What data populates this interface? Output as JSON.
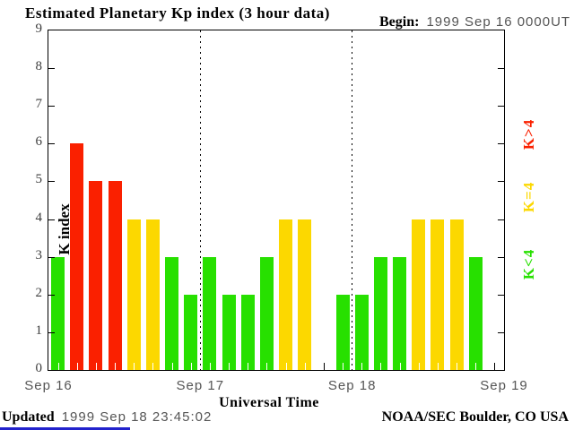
{
  "begin": {
    "label": "Begin:",
    "value": "1999 Sep 16 0000UT"
  },
  "chart_data": {
    "type": "bar",
    "title": "Estimated Planetary Kp index (3 hour data)",
    "xlabel": "Universal Time",
    "ylabel": "K index",
    "ylim": [
      0,
      9
    ],
    "y_ticks": [
      0,
      1,
      2,
      3,
      4,
      5,
      6,
      7,
      8,
      9
    ],
    "x_day_labels": [
      "Sep 16",
      "Sep 17",
      "Sep 18",
      "Sep 19"
    ],
    "bars_per_day": 8,
    "hours_per_bar": 3,
    "values": [
      3,
      6,
      5,
      5,
      4,
      4,
      3,
      2,
      3,
      2,
      2,
      3,
      4,
      4,
      null,
      2,
      2,
      3,
      3,
      4,
      4,
      4,
      3,
      null
    ],
    "missing_slots_note": "null = no bar plotted",
    "color_rules": {
      "k_below_4": "#27e000",
      "k_equal_4": "#fcd800",
      "k_above_4": "#fa2000"
    },
    "legend": [
      {
        "label": "K>4",
        "color": "#fa2000"
      },
      {
        "label": "K=4",
        "color": "#fcd800"
      },
      {
        "label": "K<4",
        "color": "#27e000"
      }
    ],
    "legend_position": "right, rotated 90deg",
    "grid": "vertical dotted lines at day boundaries"
  },
  "footer": {
    "updated_label": "Updated",
    "updated_value": "1999 Sep 18 23:45:02",
    "credit": "NOAA/SEC Boulder, CO USA"
  },
  "colors": {
    "background": "#ffffff",
    "axis": "#000000",
    "gray_text": "#555555",
    "link_underline_blue": "#2222cc"
  }
}
